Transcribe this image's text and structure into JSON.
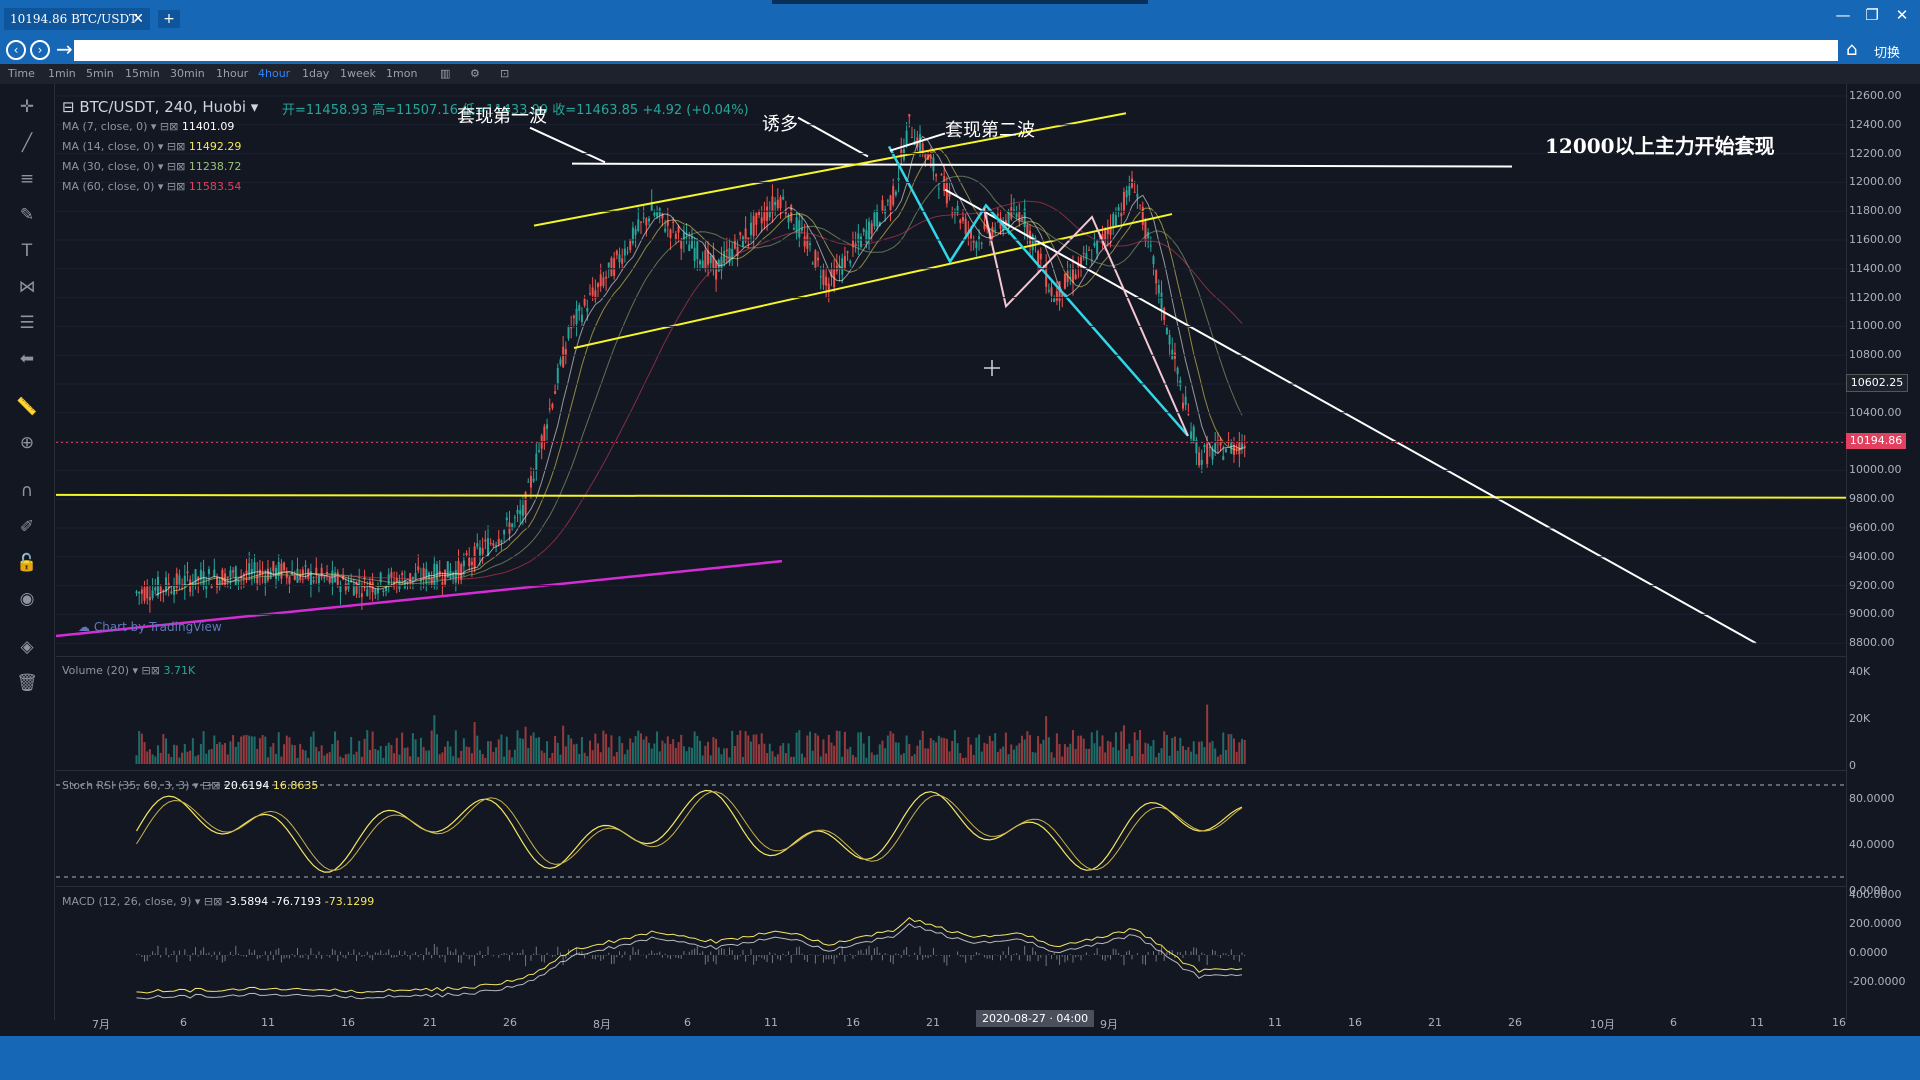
{
  "window": {
    "tab_title": "10194.86 BTC/USDT",
    "tab_close": "✕",
    "new_tab": "+",
    "minimize": "—",
    "restore": "❐",
    "close": "✕",
    "switch_label": "切换"
  },
  "timeframes": [
    "Time",
    "1min",
    "5min",
    "15min",
    "30min",
    "1hour",
    "4hour",
    "1day",
    "1week",
    "1mon"
  ],
  "active_timeframe": "4hour",
  "symbol": {
    "title": "BTC/USDT, 240, Huobi",
    "open": "开=11458.93",
    "high": "高=11507.16",
    "low": "低=11433.00",
    "close": "收=11463.85",
    "change": "+4.92 (+0.04%)"
  },
  "moving_averages": [
    {
      "label": "MA (7, close, 0)",
      "value": "11401.09",
      "color": "#ffffff"
    },
    {
      "label": "MA (14, close, 0)",
      "value": "11492.29",
      "color": "#f5e663"
    },
    {
      "label": "MA (30, close, 0)",
      "value": "11238.72",
      "color": "#9bc07e"
    },
    {
      "label": "MA (60, close, 0)",
      "value": "11583.54",
      "color": "#e2405f"
    }
  ],
  "annotations": {
    "wave1": "套现第一波",
    "lure": "诱多",
    "wave2": "套现第二波",
    "main": "12000以上主力开始套现"
  },
  "price_axis": [
    "12600.00",
    "12400.00",
    "12200.00",
    "12000.00",
    "11800.00",
    "11600.00",
    "11400.00",
    "11200.00",
    "11000.00",
    "10800.00",
    "10600.00",
    "10400.00",
    "10200.00",
    "10000.00",
    "9800.00",
    "9600.00",
    "9400.00",
    "9200.00",
    "9000.00",
    "8800.00"
  ],
  "price_tags": {
    "crosshair": "10602.25",
    "last": "10194.86",
    "last_color": "#e2405f"
  },
  "watermark": "Chart by TradingView",
  "volume": {
    "label": "Volume (20)",
    "value": "3.71K",
    "axis": [
      "40K",
      "20K",
      "0"
    ]
  },
  "stoch_rsi": {
    "label": "Stoch RSI (35, 60, 3, 3)",
    "k": "20.6194",
    "d": "16.8635",
    "axis": [
      "80.0000",
      "40.0000",
      "0.0000"
    ]
  },
  "macd": {
    "label": "MACD (12, 26, close, 9)",
    "v1": "-3.5894",
    "v2": "-76.7193",
    "v3": "-73.1299",
    "axis": [
      "400.0000",
      "200.0000",
      "0.0000",
      "-200.0000"
    ]
  },
  "x_axis": [
    "7月",
    "6",
    "11",
    "16",
    "21",
    "26",
    "8月",
    "6",
    "11",
    "16",
    "21",
    "",
    "9月",
    "",
    "11",
    "16",
    "21",
    "26",
    "10月",
    "6",
    "11",
    "16"
  ],
  "crosshair_date": "2020-08-27 · 04:00",
  "colors": {
    "accent": "#1667b6",
    "up": "#26a69a",
    "down": "#ef5350",
    "trend_yellow": "#f5f52a",
    "trend_magenta": "#d62cd6",
    "trend_cyan": "#31d7e6"
  },
  "chart_data": {
    "type": "candlestick",
    "pair": "BTC/USDT",
    "interval": "240",
    "exchange": "Huobi",
    "ylim": [
      8700,
      12700
    ],
    "key_levels": [
      12100,
      9800
    ],
    "price_path": [
      {
        "date": "2020-07-01",
        "close": 9150
      },
      {
        "date": "2020-07-05",
        "close": 9250
      },
      {
        "date": "2020-07-10",
        "close": 9300
      },
      {
        "date": "2020-07-15",
        "close": 9200
      },
      {
        "date": "2020-07-21",
        "close": 9300
      },
      {
        "date": "2020-07-25",
        "close": 9700
      },
      {
        "date": "2020-07-28",
        "close": 11000
      },
      {
        "date": "2020-08-02",
        "close": 11800
      },
      {
        "date": "2020-08-06",
        "close": 11400
      },
      {
        "date": "2020-08-10",
        "close": 11900
      },
      {
        "date": "2020-08-13",
        "close": 11300
      },
      {
        "date": "2020-08-17",
        "close": 11900
      },
      {
        "date": "2020-08-18",
        "close": 12400
      },
      {
        "date": "2020-08-22",
        "close": 11600
      },
      {
        "date": "2020-08-25",
        "close": 11800
      },
      {
        "date": "2020-08-27",
        "close": 11200
      },
      {
        "date": "2020-08-30",
        "close": 11600
      },
      {
        "date": "2020-09-01",
        "close": 12000
      },
      {
        "date": "2020-09-04",
        "close": 10500
      },
      {
        "date": "2020-09-05",
        "close": 10100
      },
      {
        "date": "2020-09-08",
        "close": 10194.86
      }
    ]
  }
}
